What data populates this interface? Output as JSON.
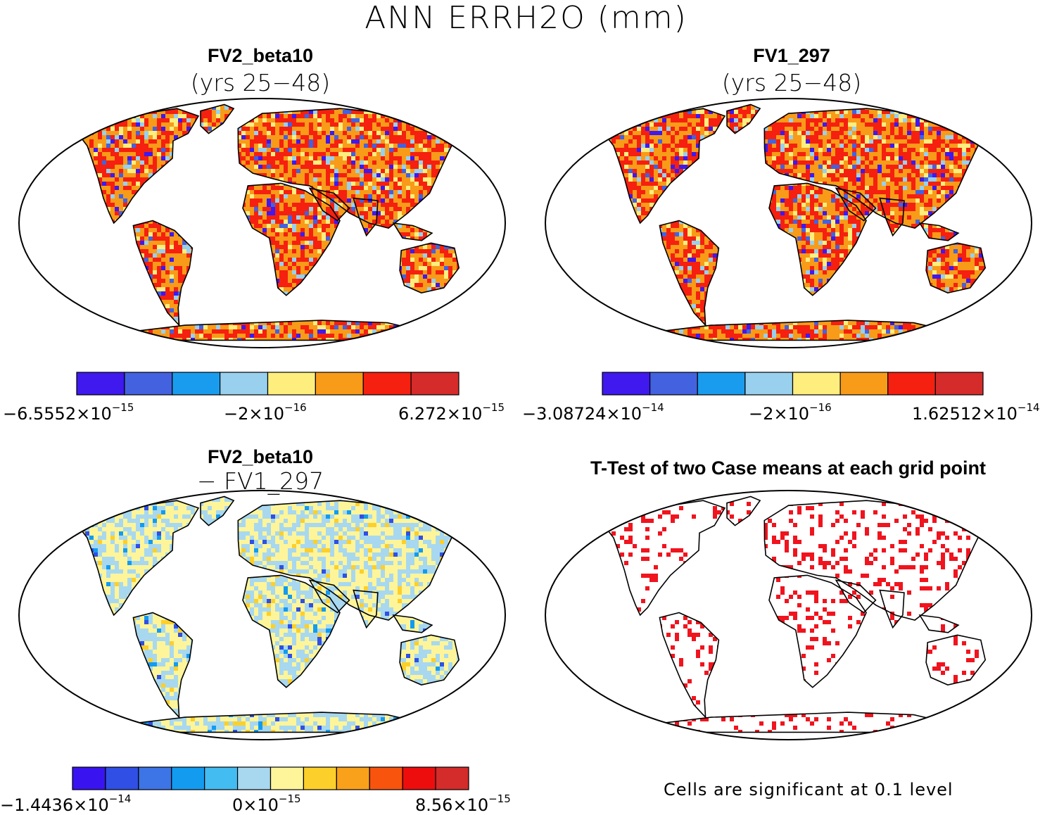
{
  "title": "ANN ERRH2O (mm)",
  "panels": [
    {
      "id": "tl",
      "title": "FV2_beta10",
      "subtitle": "(yrs 25−48)",
      "colors": [
        "#3f19ee",
        "#4362e0",
        "#1a9cee",
        "#98d0ee",
        "#fdee7e",
        "#f89b18",
        "#f5200f",
        "#d62b2b"
      ],
      "labels": [
        {
          "base": "−6.5552×10",
          "exp": "−15"
        },
        {
          "base": "−2×10",
          "exp": "−16"
        },
        {
          "base": "6.272×10",
          "exp": "−15"
        }
      ]
    },
    {
      "id": "tr",
      "title": "FV1_297",
      "subtitle": "(yrs 25−48)",
      "colors": [
        "#3f19ee",
        "#4362e0",
        "#1a9cee",
        "#98d0ee",
        "#fdee7e",
        "#f89b18",
        "#f5200f",
        "#d62b2b"
      ],
      "labels": [
        {
          "base": "−3.08724×10",
          "exp": "−14"
        },
        {
          "base": "−2×10",
          "exp": "−16"
        },
        {
          "base": "1.62512×10",
          "exp": "−14"
        }
      ]
    },
    {
      "id": "bl",
      "title": "FV2_beta10",
      "subtitle": "− FV1_297",
      "colors": [
        "#3a14f0",
        "#2f4fe5",
        "#3d74e6",
        "#139bf0",
        "#43bcf2",
        "#a8d8ef",
        "#fef59a",
        "#fdcf2a",
        "#f9a11a",
        "#f8540e",
        "#ee0d0d",
        "#d42b2b"
      ],
      "labels": [
        {
          "base": "−1.4436×10",
          "exp": "−14"
        },
        {
          "base": "0×10",
          "exp": "−15"
        },
        {
          "base": "8.56×10",
          "exp": "−15"
        }
      ]
    },
    {
      "id": "br",
      "title": "T-Test of two Case means at each grid point",
      "subtitle": "",
      "note": "Cells are significant at 0.1 level"
    }
  ]
}
